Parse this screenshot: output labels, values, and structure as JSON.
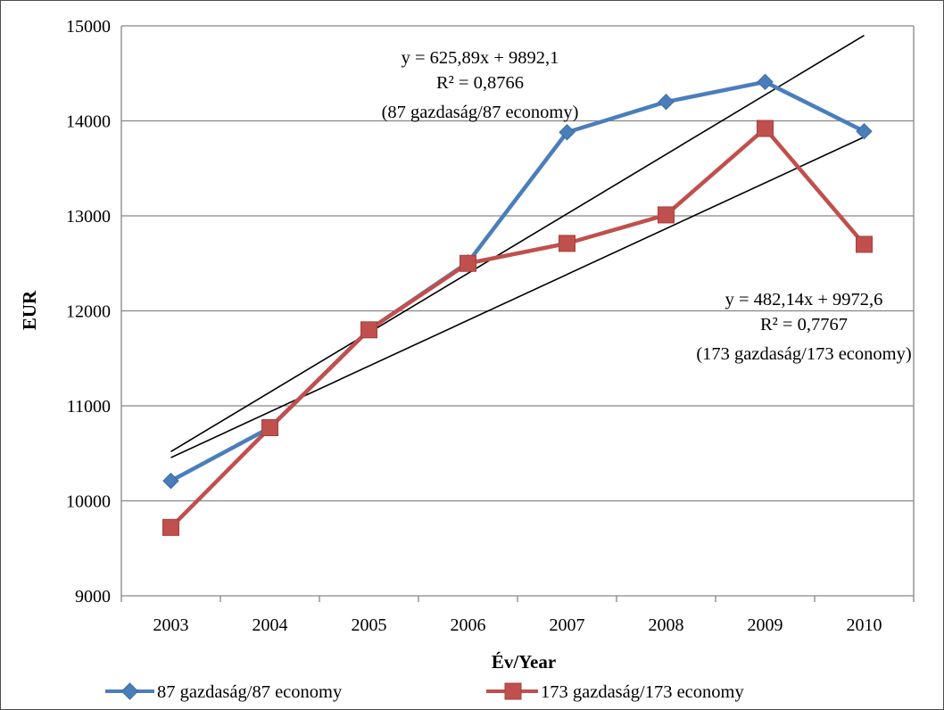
{
  "chart_data": {
    "type": "line",
    "categories": [
      "2003",
      "2004",
      "2005",
      "2006",
      "2007",
      "2008",
      "2009",
      "2010"
    ],
    "series": [
      {
        "name": "87 gazdaság/87 economy",
        "values": [
          10210,
          10770,
          11800,
          12510,
          13880,
          14200,
          14410,
          13890
        ],
        "color": "#4a7ebb",
        "marker": "diamond"
      },
      {
        "name": "173 gazdaság/173 economy",
        "values": [
          9720,
          10770,
          11800,
          12500,
          12710,
          13010,
          13920,
          12700
        ],
        "color": "#c0504d",
        "marker": "square"
      }
    ],
    "trendlines": [
      {
        "series": "87 gazdaság/87 economy",
        "slope": 625.89,
        "intercept": 9892.1,
        "equation": "y = 625,89x + 9892,1",
        "r2": "R² = 0,8766",
        "label": "(87 gazdaság/87 economy)"
      },
      {
        "series": "173 gazdaság/173 economy",
        "slope": 482.14,
        "intercept": 9972.6,
        "equation": "y = 482,14x + 9972,6",
        "r2": "R² = 0,7767",
        "label": "(173 gazdaság/173 economy)"
      }
    ],
    "xlabel": "Év/Year",
    "ylabel": "EUR",
    "ylim": [
      9000,
      15000
    ],
    "yticks": [
      "9000",
      "10000",
      "11000",
      "12000",
      "13000",
      "14000",
      "15000"
    ],
    "grid": true,
    "legend_position": "bottom"
  }
}
